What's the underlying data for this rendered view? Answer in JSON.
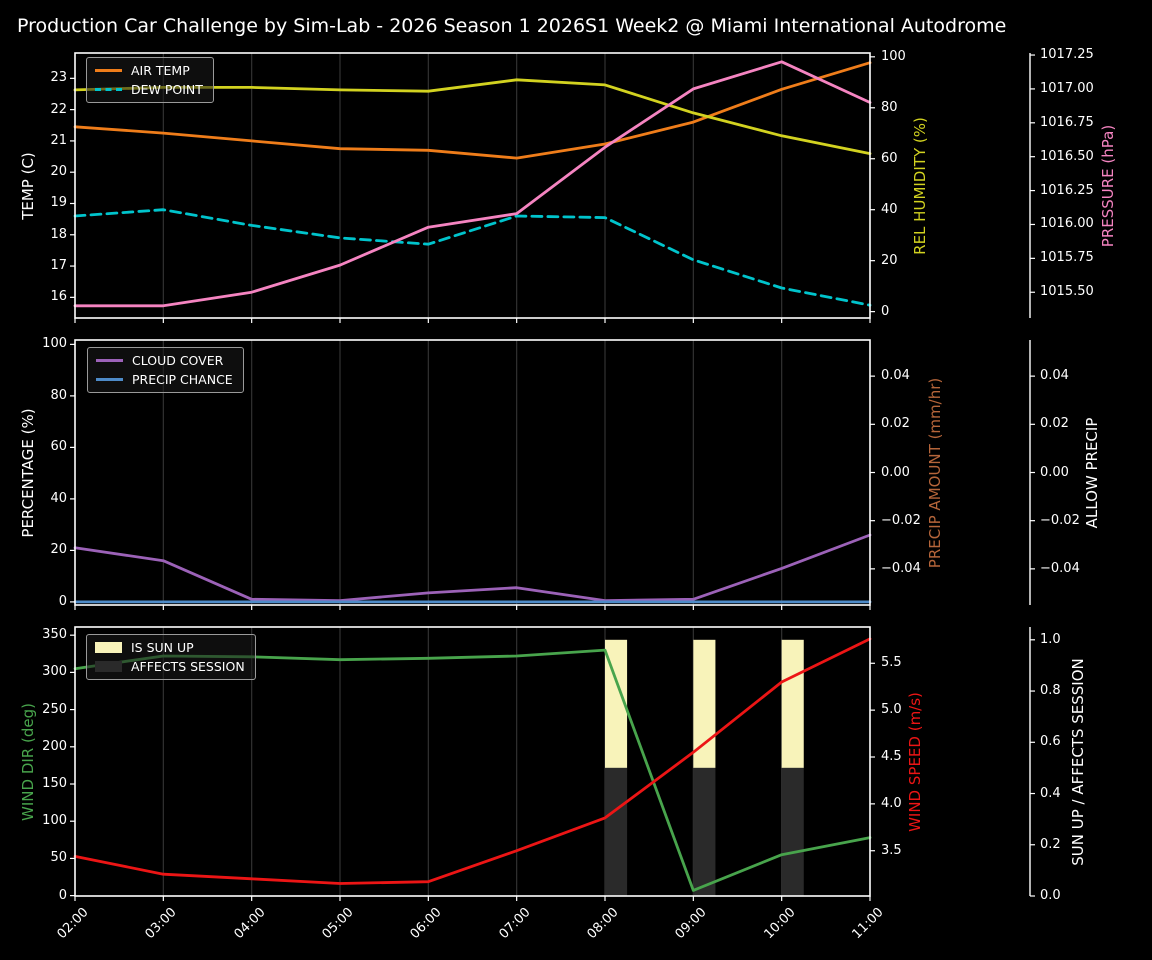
{
  "title": "Production Car Challenge by Sim-Lab - 2026 Season 1 2026S1 Week2 @ Miami International Autodrome",
  "colors": {
    "background": "#000000",
    "foreground": "#ffffff",
    "grid": "#323232",
    "air_temp": "#ef7d1a",
    "dew_point": "#00c4cc",
    "rel_humidity": "#d2d220",
    "pressure": "#f584c1",
    "cloud_cover": "#9c62b8",
    "precip_chance": "#4e8bc8",
    "precip_amount": "#b5653a",
    "wind_dir": "#48a44c",
    "wind_speed": "#ec1515",
    "sun_up": "#f8f3ba",
    "affects_session": "#2a2a2a",
    "legend_bg": "#1a1a1a",
    "legend_border": "#9a9a9a"
  },
  "x_axis": {
    "hours": [
      2,
      3,
      4,
      5,
      6,
      7,
      8,
      9,
      10,
      11
    ],
    "range": [
      2,
      11
    ],
    "tick_labels": [
      "02:00",
      "03:00",
      "04:00",
      "05:00",
      "06:00",
      "07:00",
      "08:00",
      "09:00",
      "10:00",
      "11:00"
    ]
  },
  "chart_data": [
    {
      "type": "line",
      "x_hours": [
        2,
        3,
        4,
        5,
        6,
        7,
        8,
        9,
        10,
        11
      ],
      "axes": {
        "left": {
          "label": "TEMP (C)",
          "color_key": "foreground",
          "ticks": [
            16,
            17,
            18,
            19,
            20,
            21,
            22,
            23
          ],
          "tick_labels": [
            "16",
            "17",
            "18",
            "19",
            "20",
            "21",
            "22",
            "23"
          ],
          "ylim": [
            15.34,
            23.81
          ]
        },
        "right_inner": {
          "label": "REL HUMIDITY (%)",
          "color_key": "rel_humidity",
          "ticks": [
            0,
            20,
            40,
            60,
            80,
            100
          ],
          "tick_labels": [
            "0",
            "20",
            "40",
            "60",
            "80",
            "100"
          ],
          "ylim": [
            -2.5,
            101.5
          ]
        },
        "right_outer": {
          "label": "PRESSURE (hPa)",
          "color_key": "pressure",
          "ticks": [
            1015.5,
            1015.75,
            1016.0,
            1016.25,
            1016.5,
            1016.75,
            1017.0,
            1017.25
          ],
          "tick_labels": [
            "1015.50",
            "1015.75",
            "1016.00",
            "1016.25",
            "1016.50",
            "1016.75",
            "1017.00",
            "1017.25"
          ],
          "ylim": [
            1015.31,
            1017.265
          ]
        }
      },
      "series": [
        {
          "name": "AIR TEMP",
          "axis": "left",
          "color_key": "air_temp",
          "dashed": false,
          "values": [
            21.45,
            21.25,
            21.0,
            20.75,
            20.7,
            20.45,
            20.9,
            21.6,
            22.65,
            23.5
          ]
        },
        {
          "name": "DEW POINT",
          "axis": "left",
          "color_key": "dew_point",
          "dashed": true,
          "values": [
            18.6,
            18.8,
            18.3,
            17.9,
            17.7,
            18.6,
            18.55,
            17.2,
            16.3,
            15.75
          ]
        },
        {
          "name": "REL HUMIDITY",
          "axis": "right_inner",
          "color_key": "rel_humidity",
          "dashed": false,
          "values": [
            87,
            88,
            88,
            87,
            86.5,
            91,
            89,
            78,
            69,
            62
          ]
        },
        {
          "name": "PRESSURE",
          "axis": "right_outer",
          "color_key": "pressure",
          "dashed": false,
          "values": [
            1015.4,
            1015.4,
            1015.5,
            1015.7,
            1015.98,
            1016.08,
            1016.57,
            1017.0,
            1017.2,
            1016.9
          ]
        }
      ],
      "legend": [
        {
          "label": "AIR TEMP",
          "color_key": "air_temp",
          "style": "line"
        },
        {
          "label": "DEW POINT",
          "color_key": "dew_point",
          "style": "dash"
        }
      ]
    },
    {
      "type": "line",
      "x_hours": [
        2,
        3,
        4,
        5,
        6,
        7,
        8,
        9,
        10,
        11
      ],
      "axes": {
        "left": {
          "label": "PERCENTAGE (%)",
          "color_key": "foreground",
          "ticks": [
            0,
            20,
            40,
            60,
            80,
            100
          ],
          "tick_labels": [
            "0",
            "20",
            "40",
            "60",
            "80",
            "100"
          ],
          "ylim": [
            -1.2,
            101.7
          ]
        },
        "right_inner": {
          "label": "PRECIP AMOUNT (mm/hr)",
          "color_key": "precip_amount",
          "ticks": [
            -0.04,
            -0.02,
            0.0,
            0.02,
            0.04
          ],
          "tick_labels": [
            "−0.04",
            "−0.02",
            "0.00",
            "0.02",
            "0.04"
          ],
          "ylim": [
            -0.055,
            0.055
          ]
        },
        "right_outer": {
          "label": "ALLOW PRECIP",
          "color_key": "foreground",
          "ticks": [
            -0.04,
            -0.02,
            0.0,
            0.02,
            0.04
          ],
          "tick_labels": [
            "−0.04",
            "−0.02",
            "0.00",
            "0.02",
            "0.04"
          ],
          "ylim": [
            -0.055,
            0.055
          ]
        }
      },
      "series": [
        {
          "name": "CLOUD COVER",
          "axis": "left",
          "color_key": "cloud_cover",
          "dashed": false,
          "values": [
            21,
            16,
            1,
            0.5,
            3.5,
            5.5,
            0.5,
            1,
            13,
            26
          ]
        },
        {
          "name": "PRECIP CHANCE",
          "axis": "left",
          "color_key": "precip_chance",
          "dashed": false,
          "values": [
            0,
            0,
            0,
            0,
            0,
            0,
            0,
            0,
            0,
            0
          ]
        }
      ],
      "legend": [
        {
          "label": "CLOUD COVER",
          "color_key": "cloud_cover",
          "style": "line"
        },
        {
          "label": "PRECIP CHANCE",
          "color_key": "precip_chance",
          "style": "line"
        }
      ]
    },
    {
      "type": "line",
      "x_hours": [
        2,
        3,
        4,
        5,
        6,
        7,
        8,
        9,
        10,
        11
      ],
      "axes": {
        "left": {
          "label": "WIND DIR (deg)",
          "color_key": "wind_dir",
          "ticks": [
            0,
            50,
            100,
            150,
            200,
            250,
            300,
            350
          ],
          "tick_labels": [
            "0",
            "50",
            "100",
            "150",
            "200",
            "250",
            "300",
            "350"
          ],
          "ylim": [
            -0.5,
            361
          ]
        },
        "right_inner": {
          "label": "WIND SPEED (m/s)",
          "color_key": "wind_speed",
          "ticks": [
            3.5,
            4.0,
            4.5,
            5.0,
            5.5
          ],
          "tick_labels": [
            "3.5",
            "4.0",
            "4.5",
            "5.0",
            "5.5"
          ],
          "ylim": [
            3.017,
            5.887
          ]
        },
        "right_outer": {
          "label": "SUN UP / AFFECTS SESSION",
          "color_key": "foreground",
          "ticks": [
            0.0,
            0.2,
            0.4,
            0.6,
            0.8,
            1.0
          ],
          "tick_labels": [
            "0.0",
            "0.2",
            "0.4",
            "0.6",
            "0.8",
            "1.0"
          ],
          "ylim": [
            0,
            1.05
          ]
        }
      },
      "series": [
        {
          "name": "WIND DIR",
          "axis": "left",
          "color_key": "wind_dir",
          "dashed": false,
          "values": [
            305,
            322,
            321,
            317,
            319,
            322,
            330,
            7,
            55,
            78
          ]
        },
        {
          "name": "WIND SPEED",
          "axis": "right_inner",
          "color_key": "wind_speed",
          "dashed": false,
          "values": [
            3.44,
            3.25,
            3.2,
            3.15,
            3.17,
            3.5,
            3.85,
            4.55,
            5.3,
            5.76
          ]
        }
      ],
      "bars": {
        "axis": "right_outer",
        "hours": [
          8,
          9,
          10
        ],
        "width_hours": 0.25,
        "values": {
          "is_sun_up": [
            1,
            1,
            1
          ],
          "affects_session": [
            1,
            1,
            1
          ]
        },
        "segments": [
          {
            "name": "IS SUN UP",
            "color_key": "sun_up",
            "span": [
              0.5,
              1.0
            ]
          },
          {
            "name": "AFFECTS SESSION",
            "color_key": "affects_session",
            "span": [
              0.0,
              0.5
            ]
          }
        ]
      },
      "legend": [
        {
          "label": "IS SUN UP",
          "color_key": "sun_up",
          "style": "patch"
        },
        {
          "label": "AFFECTS SESSION",
          "color_key": "affects_session",
          "style": "patch"
        }
      ]
    }
  ]
}
